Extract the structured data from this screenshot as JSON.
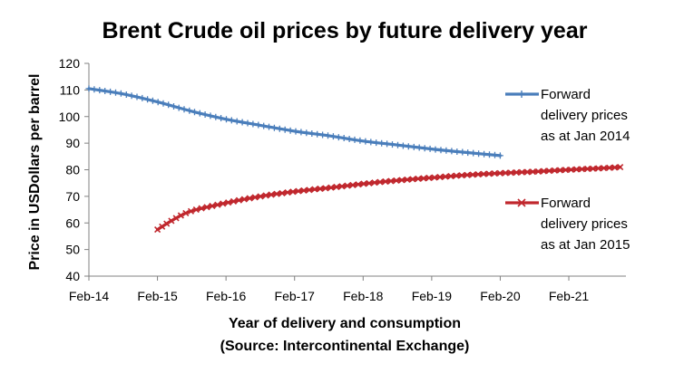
{
  "chart_data": {
    "type": "line",
    "title": "Brent Crude oil prices by future delivery year",
    "xlabel": "Year of delivery and consumption",
    "xlabel_source": "(Source: Intercontinental Exchange)",
    "ylabel": "Price in USDollars per barrel",
    "ylim": [
      40,
      120
    ],
    "yticks": [
      40,
      50,
      60,
      70,
      80,
      90,
      100,
      110,
      120
    ],
    "xtick_labels": [
      "Feb-14",
      "Feb-15",
      "Feb-16",
      "Feb-17",
      "Feb-18",
      "Feb-19",
      "Feb-20",
      "Feb-21"
    ],
    "legend_placement": "right",
    "series": [
      {
        "name": "Forward delivery prices as at Jan 2014",
        "legend_lines": [
          "Forward",
          "delivery prices",
          "as at Jan 2014"
        ],
        "color": "#4a7ebb",
        "marker": "plus",
        "points": [
          [
            "2014-02",
            110.5
          ],
          [
            "2014-08",
            108.5
          ],
          [
            "2015-02",
            105.5
          ],
          [
            "2015-08",
            102.0
          ],
          [
            "2016-02",
            99.0
          ],
          [
            "2016-08",
            96.7
          ],
          [
            "2017-02",
            94.5
          ],
          [
            "2017-08",
            92.8
          ],
          [
            "2018-02",
            90.8
          ],
          [
            "2018-08",
            89.3
          ],
          [
            "2019-02",
            87.8
          ],
          [
            "2019-08",
            86.5
          ],
          [
            "2020-02",
            85.3
          ]
        ]
      },
      {
        "name": "Forward delivery prices as at Jan 2015",
        "legend_lines": [
          "Forward",
          "delivery prices",
          "as at Jan 2015"
        ],
        "color": "#c0272d",
        "marker": "x",
        "points": [
          [
            "2015-02",
            57.5
          ],
          [
            "2015-05",
            61.5
          ],
          [
            "2015-08",
            64.5
          ],
          [
            "2016-02",
            67.5
          ],
          [
            "2016-08",
            70.0
          ],
          [
            "2017-02",
            71.8
          ],
          [
            "2017-08",
            73.2
          ],
          [
            "2018-02",
            74.7
          ],
          [
            "2018-08",
            76.0
          ],
          [
            "2019-02",
            77.0
          ],
          [
            "2019-08",
            78.0
          ],
          [
            "2020-02",
            78.7
          ],
          [
            "2020-08",
            79.3
          ],
          [
            "2021-02",
            80.0
          ],
          [
            "2021-08",
            80.6
          ],
          [
            "2021-11",
            81.0
          ]
        ]
      }
    ]
  }
}
